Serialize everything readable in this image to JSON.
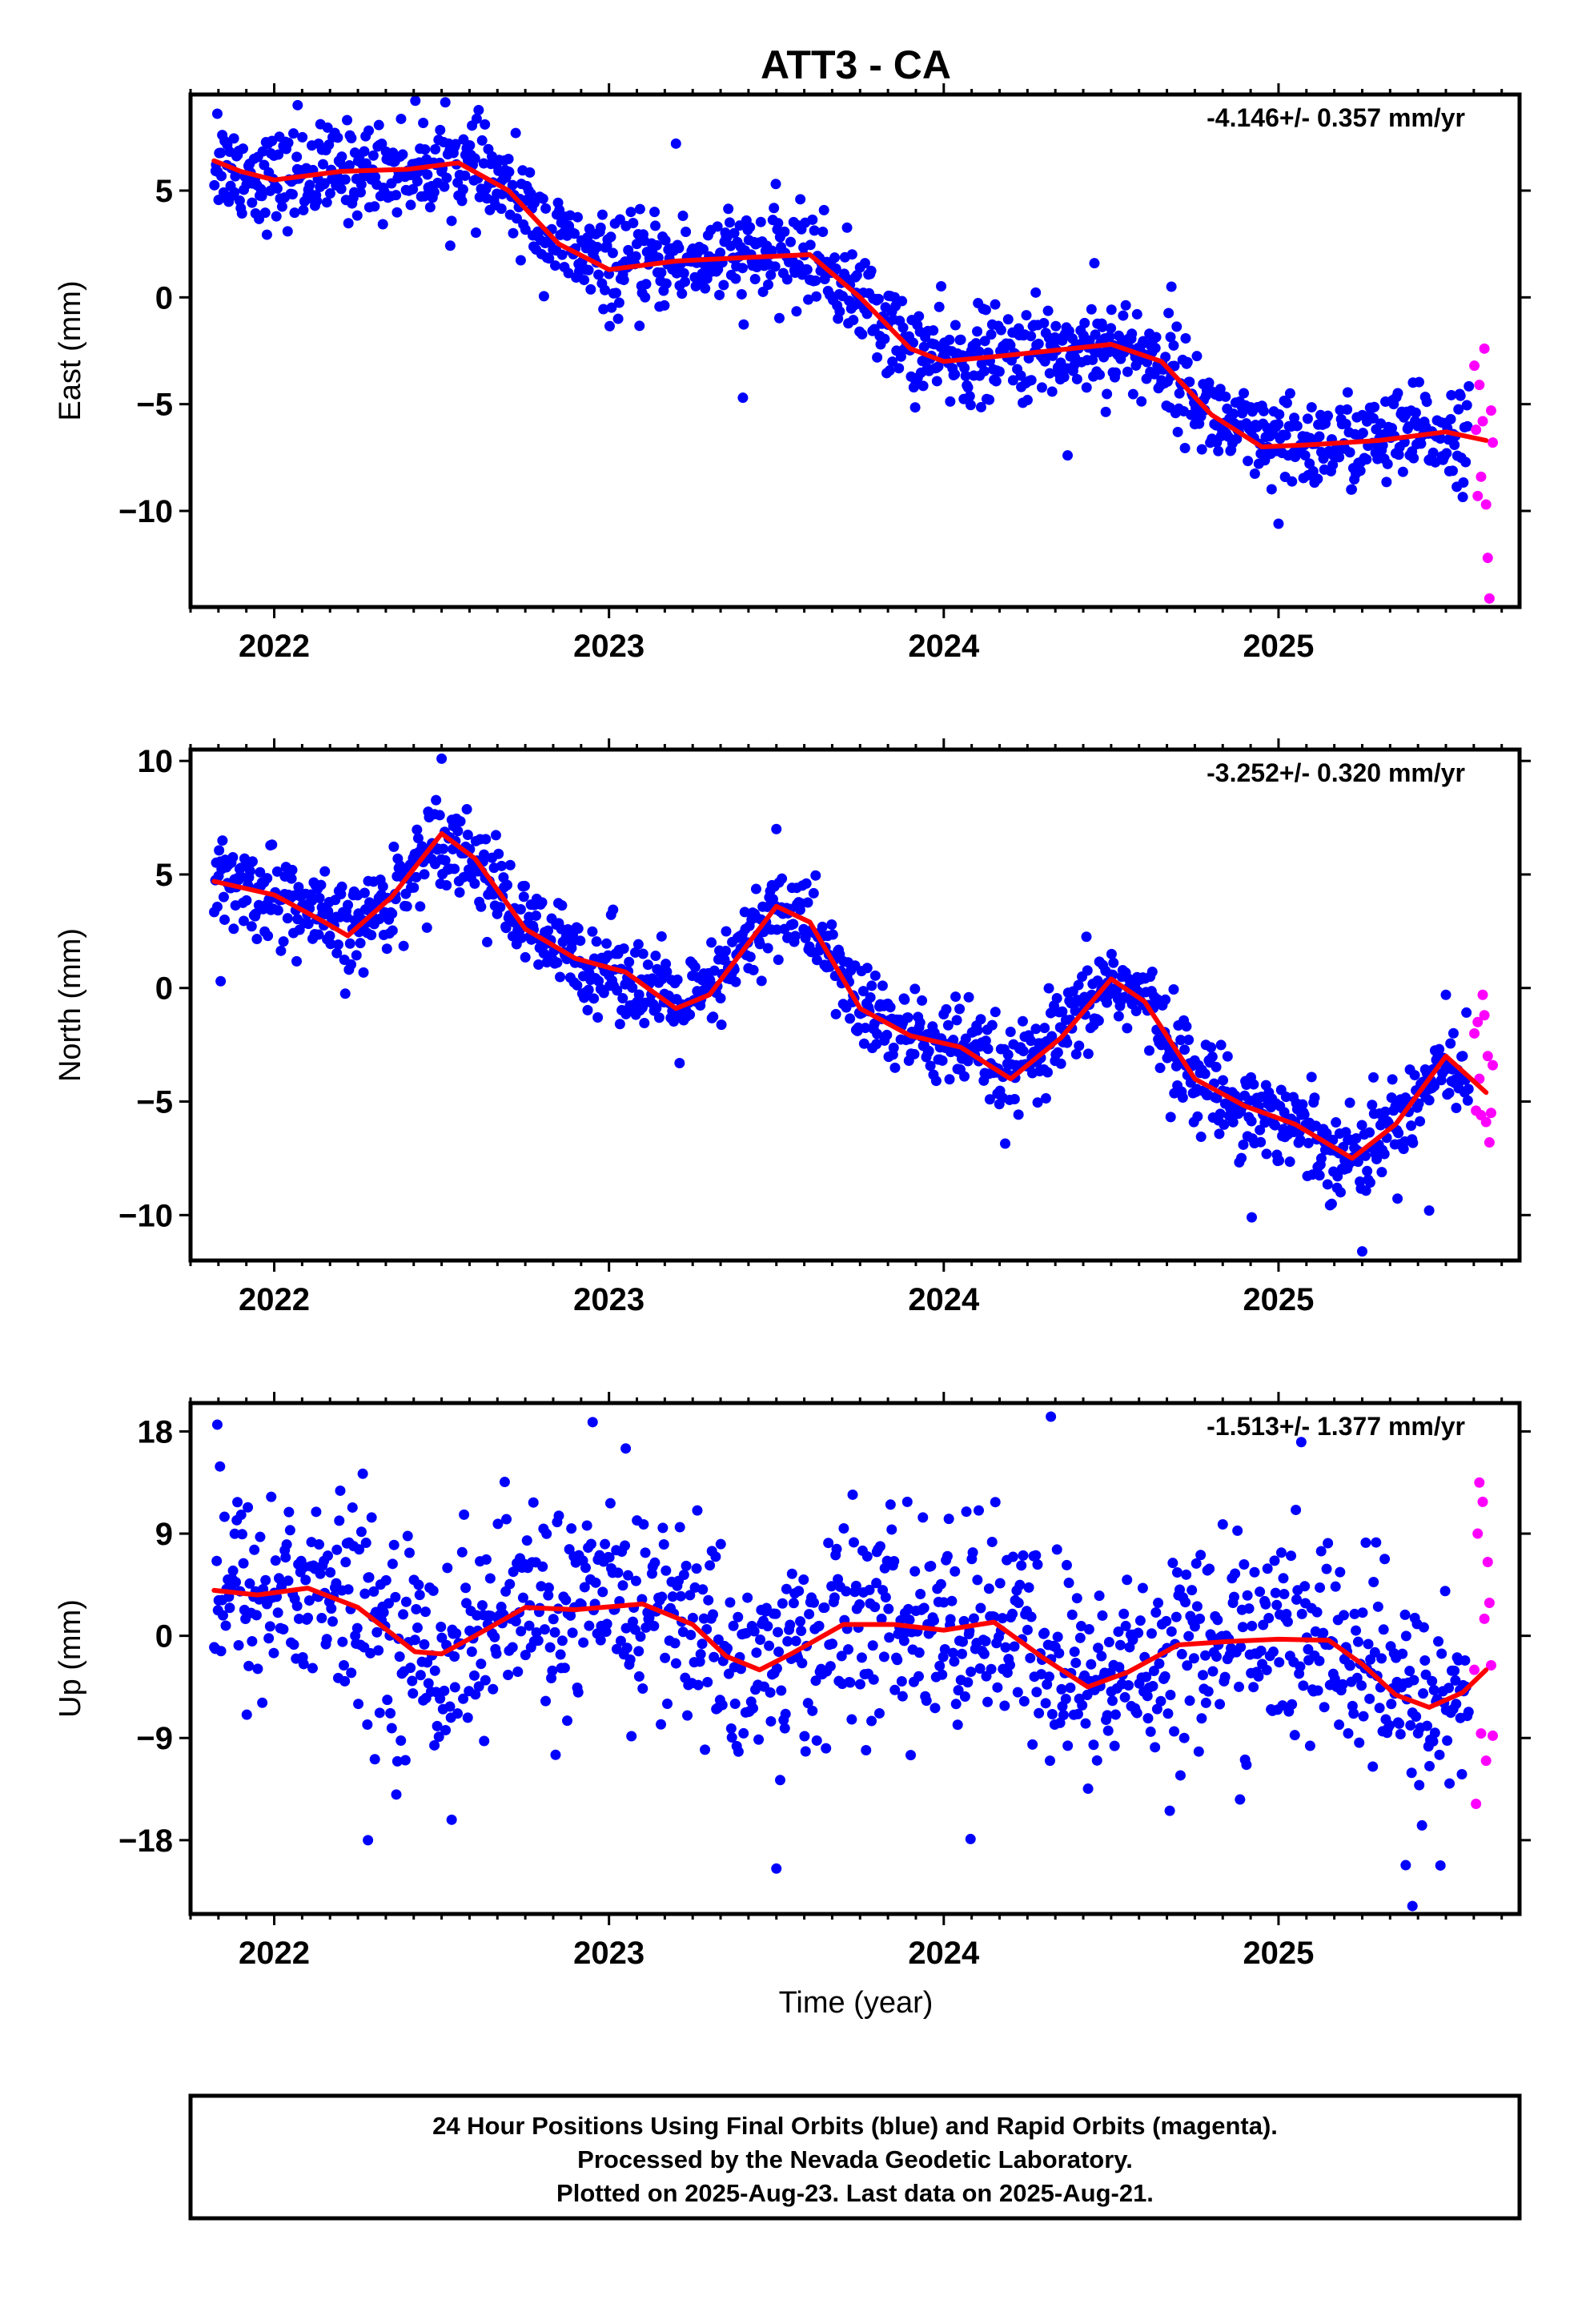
{
  "title": "ATT3 - CA",
  "x_axis_label": "Time (year)",
  "x_tick_labels": [
    "2022",
    "2023",
    "2024",
    "2025"
  ],
  "footer": {
    "line1": "24 Hour Positions Using Final Orbits (blue) and Rapid Orbits (magenta).",
    "line2": "Processed by the Nevada Geodetic Laboratory.",
    "line3": "Plotted on 2025-Aug-23. Last data on 2025-Aug-21."
  },
  "colors": {
    "final_orbits": "#0000ff",
    "rapid_orbits": "#ff00ff",
    "trend": "#ff0000",
    "frame": "#000000"
  },
  "chart_data": [
    {
      "type": "scatter",
      "ylabel": "East (mm)",
      "rate_label": "-4.146+/- 0.357 mm/yr",
      "xlim": [
        2021.75,
        2025.72
      ],
      "ylim": [
        -14.5,
        9.5
      ],
      "yticks": [
        -10,
        -5,
        0,
        5
      ],
      "ytick_labels": [
        "−10",
        "−5",
        "0",
        "5"
      ],
      "series": [
        {
          "color": "blue",
          "points_per_year": 330,
          "start": 2021.82,
          "end": 2025.57,
          "noise": 1.1,
          "outliers": [
            [
              2021.83,
              8.6
            ],
            [
              2022.07,
              9.0
            ],
            [
              2023.2,
              7.2
            ],
            [
              2023.4,
              -4.7
            ],
            [
              2024.37,
              -7.4
            ],
            [
              2025.0,
              -10.6
            ],
            [
              2024.45,
              1.6
            ],
            [
              2024.68,
              0.5
            ]
          ]
        },
        {
          "color": "magenta",
          "points_per_year": 0,
          "start": 2025.58,
          "end": 2025.64,
          "values": [
            [
              2025.585,
              -3.2
            ],
            [
              2025.59,
              -6.2
            ],
            [
              2025.595,
              -9.3
            ],
            [
              2025.6,
              -4.1
            ],
            [
              2025.605,
              -8.4
            ],
            [
              2025.61,
              -5.8
            ],
            [
              2025.615,
              -2.4
            ],
            [
              2025.62,
              -9.7
            ],
            [
              2025.625,
              -12.2
            ],
            [
              2025.63,
              -14.1
            ],
            [
              2025.635,
              -5.3
            ],
            [
              2025.64,
              -6.8
            ]
          ]
        }
      ],
      "trend": [
        [
          2021.82,
          6.4
        ],
        [
          2021.9,
          5.9
        ],
        [
          2022.0,
          5.5
        ],
        [
          2022.2,
          5.9
        ],
        [
          2022.4,
          6.0
        ],
        [
          2022.55,
          6.3
        ],
        [
          2022.7,
          5.0
        ],
        [
          2022.85,
          2.5
        ],
        [
          2023.0,
          1.3
        ],
        [
          2023.2,
          1.7
        ],
        [
          2023.45,
          1.9
        ],
        [
          2023.6,
          2.0
        ],
        [
          2023.75,
          0.0
        ],
        [
          2023.9,
          -2.4
        ],
        [
          2024.0,
          -3.0
        ],
        [
          2024.2,
          -2.7
        ],
        [
          2024.5,
          -2.2
        ],
        [
          2024.65,
          -3.0
        ],
        [
          2024.8,
          -5.5
        ],
        [
          2024.95,
          -7.0
        ],
        [
          2025.1,
          -6.9
        ],
        [
          2025.3,
          -6.7
        ],
        [
          2025.5,
          -6.3
        ],
        [
          2025.62,
          -6.7
        ]
      ]
    },
    {
      "type": "scatter",
      "ylabel": "North (mm)",
      "rate_label": "-3.252+/- 0.320 mm/yr",
      "xlim": [
        2021.75,
        2025.72
      ],
      "ylim": [
        -12,
        10.5
      ],
      "yticks": [
        -10,
        -5,
        0,
        5,
        10
      ],
      "ytick_labels": [
        "−10",
        "−5",
        "0",
        "5",
        "10"
      ],
      "series": [
        {
          "color": "blue",
          "points_per_year": 330,
          "start": 2021.82,
          "end": 2025.57,
          "noise": 1.0,
          "outliers": [
            [
              2021.84,
              0.3
            ],
            [
              2022.5,
              10.1
            ],
            [
              2024.92,
              -10.1
            ],
            [
              2025.25,
              -11.6
            ],
            [
              2025.45,
              -9.8
            ],
            [
              2023.5,
              7.0
            ],
            [
              2025.5,
              -0.3
            ]
          ]
        },
        {
          "color": "magenta",
          "points_per_year": 0,
          "start": 2025.58,
          "end": 2025.64,
          "values": [
            [
              2025.585,
              -2.0
            ],
            [
              2025.59,
              -5.4
            ],
            [
              2025.595,
              -1.5
            ],
            [
              2025.6,
              -4.0
            ],
            [
              2025.605,
              -5.6
            ],
            [
              2025.61,
              -0.3
            ],
            [
              2025.615,
              -1.2
            ],
            [
              2025.62,
              -5.9
            ],
            [
              2025.625,
              -3.0
            ],
            [
              2025.63,
              -6.8
            ],
            [
              2025.635,
              -5.5
            ],
            [
              2025.64,
              -3.4
            ]
          ]
        }
      ],
      "trend": [
        [
          2021.82,
          4.7
        ],
        [
          2022.0,
          4.1
        ],
        [
          2022.15,
          2.9
        ],
        [
          2022.22,
          2.3
        ],
        [
          2022.35,
          4.0
        ],
        [
          2022.5,
          6.8
        ],
        [
          2022.6,
          5.7
        ],
        [
          2022.75,
          2.6
        ],
        [
          2022.9,
          1.3
        ],
        [
          2023.05,
          0.7
        ],
        [
          2023.2,
          -0.9
        ],
        [
          2023.3,
          -0.3
        ],
        [
          2023.5,
          3.6
        ],
        [
          2023.6,
          2.9
        ],
        [
          2023.75,
          -0.9
        ],
        [
          2023.9,
          -2.1
        ],
        [
          2024.05,
          -2.6
        ],
        [
          2024.2,
          -4.0
        ],
        [
          2024.35,
          -2.2
        ],
        [
          2024.5,
          0.4
        ],
        [
          2024.6,
          -0.6
        ],
        [
          2024.75,
          -4.0
        ],
        [
          2024.9,
          -5.2
        ],
        [
          2025.05,
          -6.0
        ],
        [
          2025.22,
          -7.5
        ],
        [
          2025.35,
          -6.0
        ],
        [
          2025.5,
          -3.0
        ],
        [
          2025.62,
          -4.6
        ]
      ]
    },
    {
      "type": "scatter",
      "ylabel": "Up (mm)",
      "rate_label": "-1.513+/- 1.377 mm/yr",
      "xlim": [
        2021.75,
        2025.72
      ],
      "ylim": [
        -24.5,
        20.5
      ],
      "yticks": [
        -18,
        -9,
        0,
        9,
        18
      ],
      "ytick_labels": [
        "−18",
        "−9",
        "0",
        "9",
        "18"
      ],
      "series": [
        {
          "color": "blue",
          "points_per_year": 300,
          "start": 2021.82,
          "end": 2025.57,
          "noise": 4.6,
          "outliers": [
            [
              2021.83,
              18.6
            ],
            [
              2022.28,
              -18.0
            ],
            [
              2022.53,
              -16.2
            ],
            [
              2023.05,
              16.5
            ],
            [
              2023.5,
              -20.5
            ],
            [
              2024.08,
              -17.9
            ],
            [
              2024.32,
              19.3
            ],
            [
              2025.4,
              -23.8
            ],
            [
              2025.38,
              -20.2
            ]
          ]
        },
        {
          "color": "magenta",
          "points_per_year": 0,
          "start": 2025.58,
          "end": 2025.64,
          "values": [
            [
              2025.585,
              -3.0
            ],
            [
              2025.59,
              -14.8
            ],
            [
              2025.595,
              9.0
            ],
            [
              2025.6,
              13.5
            ],
            [
              2025.605,
              -8.6
            ],
            [
              2025.61,
              11.8
            ],
            [
              2025.615,
              1.5
            ],
            [
              2025.62,
              -11.0
            ],
            [
              2025.625,
              6.5
            ],
            [
              2025.63,
              2.9
            ],
            [
              2025.635,
              -2.6
            ],
            [
              2025.64,
              -8.8
            ]
          ]
        }
      ],
      "trend": [
        [
          2021.82,
          4.0
        ],
        [
          2021.95,
          3.6
        ],
        [
          2022.1,
          4.2
        ],
        [
          2022.25,
          2.5
        ],
        [
          2022.42,
          -1.4
        ],
        [
          2022.5,
          -1.6
        ],
        [
          2022.6,
          0.0
        ],
        [
          2022.75,
          2.5
        ],
        [
          2022.9,
          2.3
        ],
        [
          2023.1,
          2.8
        ],
        [
          2023.25,
          1.0
        ],
        [
          2023.35,
          -1.8
        ],
        [
          2023.45,
          -3.0
        ],
        [
          2023.55,
          -1.5
        ],
        [
          2023.7,
          1.0
        ],
        [
          2023.85,
          1.0
        ],
        [
          2024.0,
          0.5
        ],
        [
          2024.15,
          1.2
        ],
        [
          2024.3,
          -2.0
        ],
        [
          2024.43,
          -4.5
        ],
        [
          2024.55,
          -3.2
        ],
        [
          2024.7,
          -0.8
        ],
        [
          2024.85,
          -0.5
        ],
        [
          2025.0,
          -0.3
        ],
        [
          2025.15,
          -0.4
        ],
        [
          2025.25,
          -2.5
        ],
        [
          2025.35,
          -5.2
        ],
        [
          2025.45,
          -6.3
        ],
        [
          2025.55,
          -5.0
        ],
        [
          2025.62,
          -3.0
        ]
      ]
    }
  ]
}
